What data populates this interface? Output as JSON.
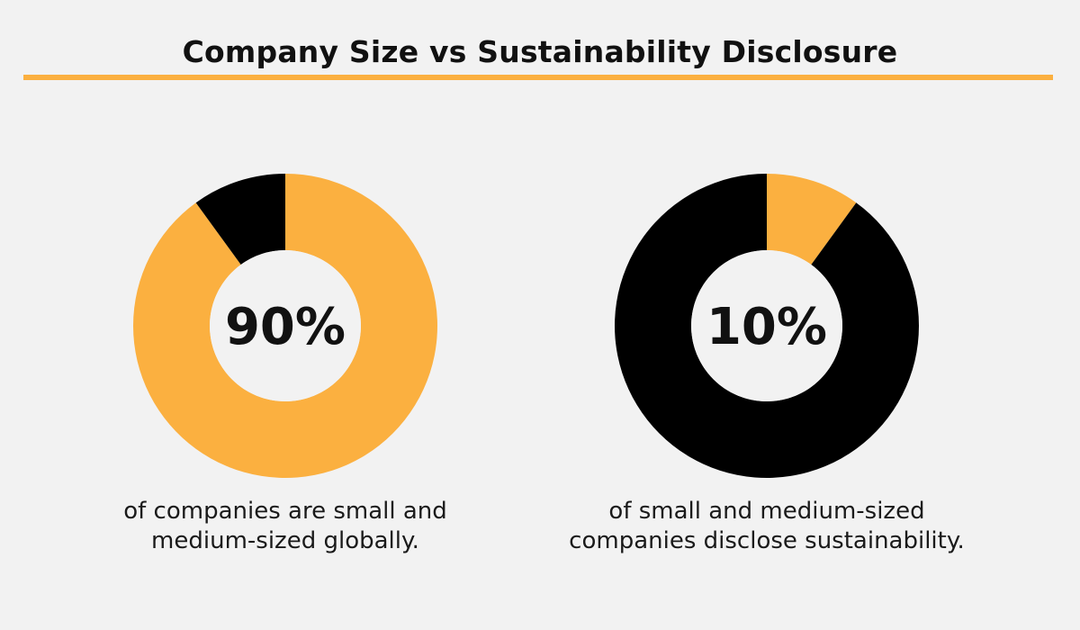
{
  "title": "Company Size vs Sustainability Disclosure",
  "colors": {
    "accent": "#fbb040",
    "dark": "#000000",
    "background": "#f2f2f2"
  },
  "chart_data": [
    {
      "type": "pie",
      "center_label": "90%",
      "slices": [
        {
          "value": 90,
          "color": "#fbb040"
        },
        {
          "value": 10,
          "color": "#000000"
        }
      ],
      "caption": "of companies are small and medium-sized globally."
    },
    {
      "type": "pie",
      "center_label": "10%",
      "slices": [
        {
          "value": 10,
          "color": "#fbb040"
        },
        {
          "value": 90,
          "color": "#000000"
        }
      ],
      "caption": "of small and medium-sized companies disclose sustainability."
    }
  ]
}
